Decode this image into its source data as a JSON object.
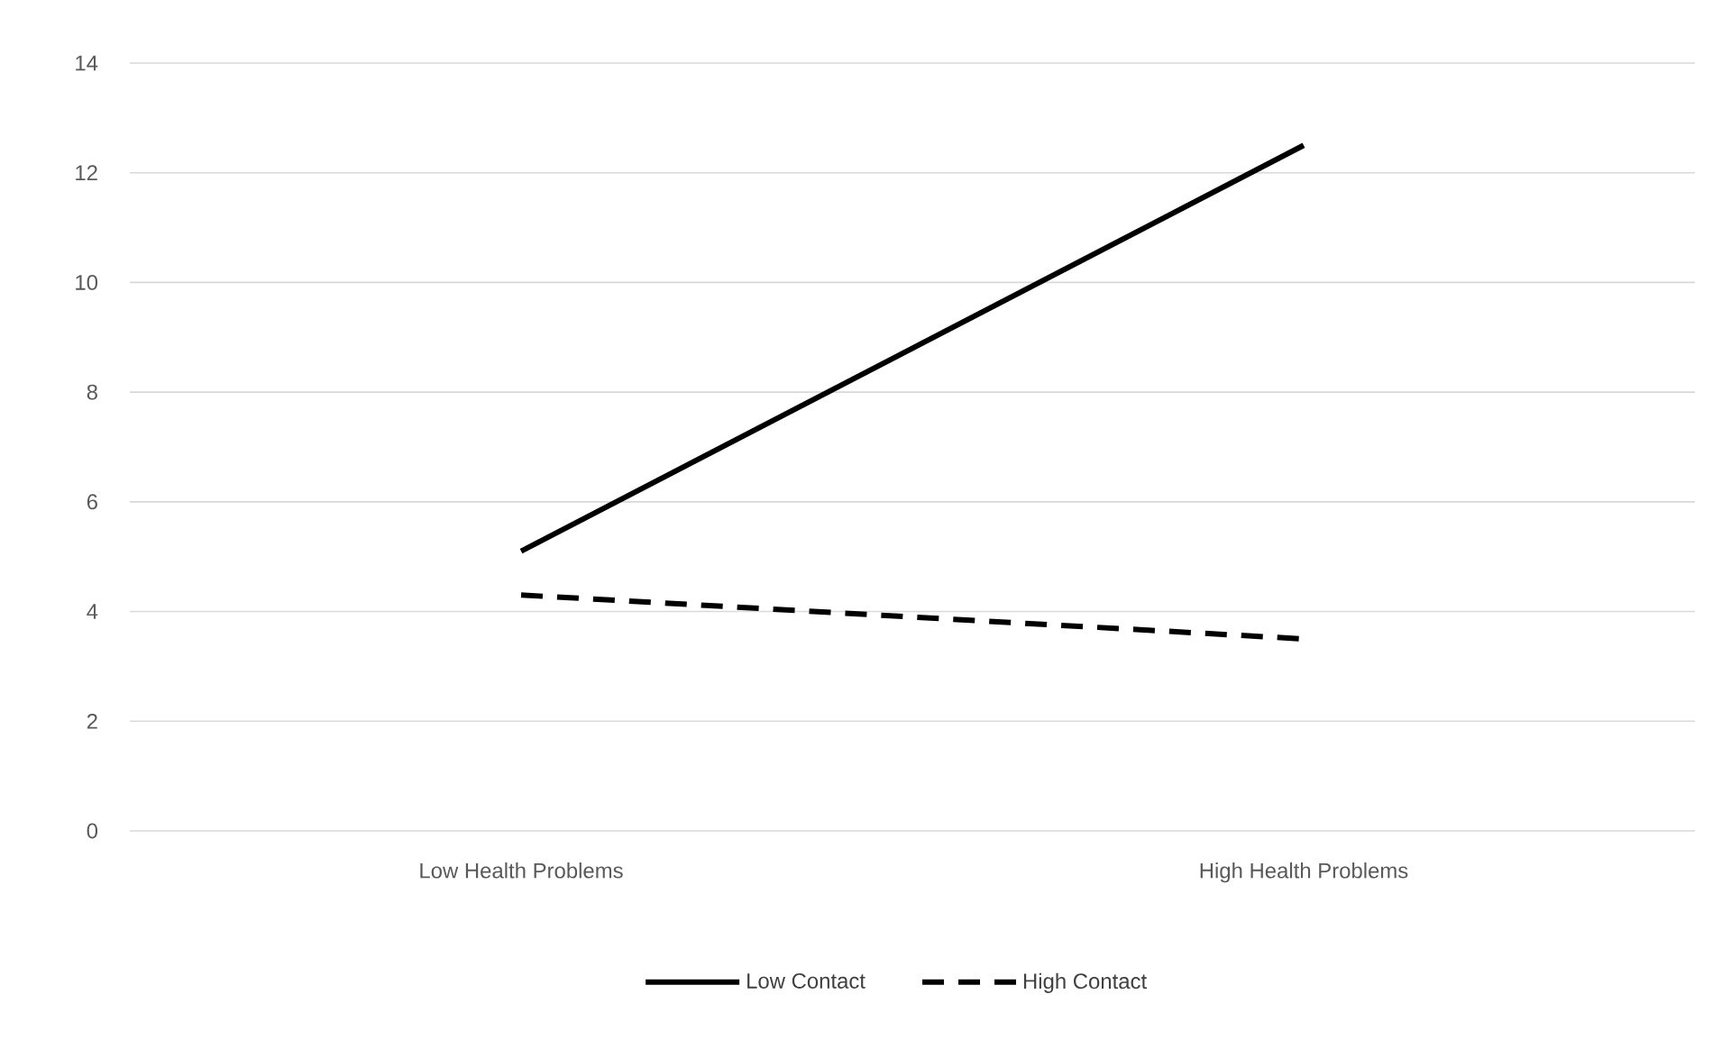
{
  "chart_data": {
    "type": "line",
    "categories": [
      "Low Health Problems",
      "High Health Problems"
    ],
    "series": [
      {
        "name": "Low Contact",
        "color": "#000000",
        "values": [
          5.1,
          12.5
        ],
        "line_style": "solid"
      },
      {
        "name": "High Contact",
        "color": "#000000",
        "values": [
          4.3,
          3.5
        ],
        "line_style": "dashed"
      }
    ],
    "ylim": [
      0,
      14
    ],
    "yticks": [
      0,
      2,
      4,
      6,
      8,
      10,
      12,
      14
    ],
    "grid": "y",
    "legend": "bottom",
    "marker": "none"
  }
}
